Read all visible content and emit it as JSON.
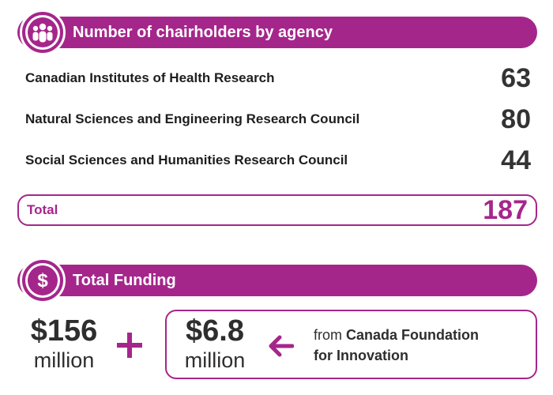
{
  "chairholders": {
    "title": "Number of chairholders by agency",
    "icon": "people-icon",
    "agencies": [
      {
        "name": "Canadian Institutes of Health Research",
        "count": "63"
      },
      {
        "name": "Natural Sciences and Engineering Research Council",
        "count": "80"
      },
      {
        "name": "Social Sciences and Humanities Research Council",
        "count": "44"
      }
    ],
    "total_label": "Total",
    "total_value": "187"
  },
  "funding": {
    "title": "Total Funding",
    "icon": "dollar-icon",
    "main_amount": "$156",
    "main_unit": "million",
    "plus_icon": "plus-icon",
    "cfi_amount": "$6.8",
    "cfi_unit": "million",
    "arrow_icon": "arrow-left-icon",
    "cfi_source_prefix": "from",
    "cfi_source_name_line1": "Canada Foundation",
    "cfi_source_name_line2": "for Innovation"
  },
  "colors": {
    "accent": "#a5268b",
    "text": "#1e1e1e",
    "number": "#333333"
  }
}
